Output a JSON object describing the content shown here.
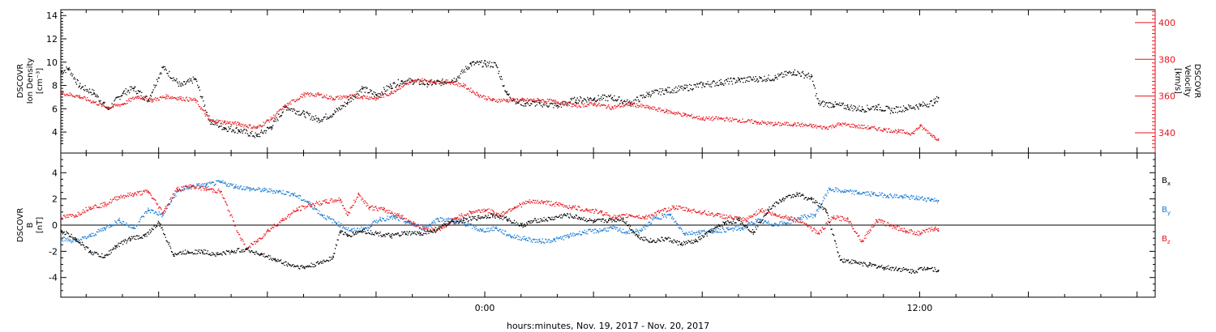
{
  "chart_data": [
    {
      "type": "scatter",
      "panel": "top",
      "xlabel": "hours:minutes, Nov. 19, 2017 - Nov. 20, 2017",
      "x_unit": "hours relative to 0:00 Nov. 20, 2017",
      "xlim": [
        -11.7,
        18.5
      ],
      "x_tick_labels": [
        {
          "x": 0,
          "label": "0:00"
        },
        {
          "x": 12,
          "label": "12:00"
        }
      ],
      "ylabel_left": [
        "DSCOVR",
        "Ion Density",
        "[cm⁻³]"
      ],
      "ylim_left": [
        2.2,
        14.5
      ],
      "yticks_left": [
        4,
        6,
        8,
        10,
        12,
        14
      ],
      "ylabel_right": [
        "DSCOVR",
        "Velocity",
        "[km/s]"
      ],
      "ylim_right": [
        329,
        407
      ],
      "yticks_right": [
        340,
        360,
        380,
        400
      ],
      "series": [
        {
          "axis": "left",
          "color": "#000000",
          "x": [
            -11.7,
            -11.5,
            -11.2,
            -10.8,
            -10.4,
            -10.0,
            -9.7,
            -9.3,
            -8.9,
            -8.4,
            -8.0,
            -7.6,
            -7.2,
            -6.8,
            -6.3,
            -5.9,
            -5.5,
            -5.0,
            -4.6,
            -4.2,
            -3.8,
            -3.4,
            -3.0,
            -2.6,
            -2.3,
            -2.0,
            -1.6,
            -1.2,
            -0.8,
            -0.4,
            0.0,
            0.3,
            0.6,
            0.9,
            1.1,
            1.5,
            2.0,
            2.5,
            3.0,
            3.5,
            4.0,
            4.5,
            5.0,
            5.5,
            6.0,
            6.5,
            7.0,
            7.5,
            8.0,
            8.5,
            9.0,
            9.2,
            9.6,
            10.0,
            10.4,
            10.8,
            11.2,
            11.6,
            12.0,
            12.4,
            12.5
          ],
          "y": [
            9.2,
            9.5,
            8.0,
            7.4,
            6.0,
            7.4,
            7.8,
            6.8,
            9.6,
            8.0,
            8.6,
            5.0,
            4.4,
            4.2,
            3.7,
            4.5,
            6.2,
            5.6,
            5.1,
            5.6,
            6.6,
            7.8,
            7.2,
            8.0,
            8.4,
            8.4,
            8.2,
            8.3,
            8.6,
            9.9,
            9.9,
            9.8,
            7.3,
            6.6,
            6.5,
            6.5,
            6.3,
            6.8,
            6.9,
            7.0,
            6.5,
            7.3,
            7.6,
            7.8,
            8.1,
            8.3,
            8.5,
            8.6,
            8.7,
            9.2,
            8.8,
            6.5,
            6.4,
            6.2,
            6.0,
            6.2,
            5.9,
            6.1,
            6.3,
            6.6,
            7.0
          ]
        },
        {
          "axis": "right",
          "color": "#e8141c",
          "x": [
            -11.7,
            -11.2,
            -10.8,
            -10.4,
            -10.0,
            -9.6,
            -9.2,
            -8.8,
            -8.4,
            -8.0,
            -7.6,
            -7.2,
            -6.8,
            -6.3,
            -5.9,
            -5.5,
            -5.0,
            -4.6,
            -4.2,
            -3.8,
            -3.4,
            -3.0,
            -2.6,
            -2.2,
            -1.8,
            -1.4,
            -1.0,
            -0.6,
            -0.2,
            0.2,
            0.6,
            1.0,
            1.5,
            2.0,
            2.5,
            3.0,
            3.5,
            4.0,
            4.5,
            5.0,
            5.5,
            6.0,
            6.5,
            7.0,
            7.5,
            8.0,
            8.5,
            9.0,
            9.4,
            9.8,
            10.2,
            10.6,
            11.0,
            11.4,
            11.8,
            12.0,
            12.4,
            12.5
          ],
          "y": [
            362,
            360,
            357,
            354,
            356,
            360,
            358,
            360,
            359,
            358,
            347,
            346,
            345,
            343,
            348,
            355,
            361,
            361,
            359,
            360,
            360,
            359,
            362,
            367,
            369,
            368,
            368,
            366,
            361,
            358,
            358,
            358,
            358,
            357,
            355,
            356,
            354,
            356,
            354,
            352,
            350,
            348,
            348,
            347,
            346,
            345,
            345,
            344,
            343,
            345,
            344,
            343,
            342,
            341,
            340,
            344,
            338,
            337
          ]
        }
      ]
    },
    {
      "type": "scatter",
      "panel": "bottom",
      "xlabel": "hours:minutes, Nov. 19, 2017 - Nov. 20, 2017",
      "xlim": [
        -11.7,
        18.5
      ],
      "ylabel": [
        "DSCOVR",
        "B",
        "[nT]"
      ],
      "ylim": [
        -5.5,
        5.5
      ],
      "yticks": [
        -4,
        -2,
        0,
        2,
        4
      ],
      "zero_line": true,
      "series": [
        {
          "label": "Bx",
          "color": "#000000",
          "x": [
            -11.7,
            -11.3,
            -10.9,
            -10.5,
            -10.2,
            -9.8,
            -9.4,
            -9.0,
            -8.6,
            -8.2,
            -7.8,
            -7.4,
            -7.0,
            -6.6,
            -6.2,
            -5.8,
            -5.4,
            -5.0,
            -4.6,
            -4.2,
            -4.0,
            -3.8,
            -3.4,
            -3.0,
            -2.6,
            -2.2,
            -1.8,
            -1.4,
            -1.0,
            -0.6,
            -0.2,
            0.2,
            0.6,
            1.0,
            1.4,
            1.8,
            2.2,
            2.6,
            3.0,
            3.4,
            3.8,
            4.2,
            4.6,
            5.0,
            5.4,
            5.8,
            6.2,
            6.6,
            7.0,
            7.4,
            7.8,
            8.2,
            8.6,
            9.0,
            9.4,
            9.8,
            10.2,
            10.6,
            11.0,
            11.4,
            11.8,
            12.2,
            12.5
          ],
          "y": [
            -0.4,
            -1.0,
            -2.0,
            -2.4,
            -1.6,
            -1.0,
            -0.8,
            0.2,
            -2.2,
            -2.0,
            -2.0,
            -2.2,
            -2.0,
            -1.8,
            -2.2,
            -2.6,
            -3.0,
            -3.2,
            -2.9,
            -2.4,
            -0.4,
            -0.8,
            -0.4,
            -0.6,
            -0.8,
            -0.6,
            -0.6,
            -0.4,
            0.2,
            0.4,
            0.6,
            0.8,
            0.5,
            0.0,
            0.4,
            0.5,
            0.8,
            0.6,
            0.3,
            0.4,
            0.5,
            -0.8,
            -1.2,
            -1.0,
            -1.4,
            -1.2,
            -0.5,
            0.2,
            0.4,
            -0.5,
            1.2,
            2.0,
            2.4,
            2.0,
            1.2,
            -2.6,
            -2.8,
            -3.0,
            -3.2,
            -3.3,
            -3.5,
            -3.2,
            -3.4
          ]
        },
        {
          "label": "By",
          "color": "#1478d4",
          "x": [
            -11.7,
            -11.3,
            -10.9,
            -10.5,
            -10.1,
            -9.7,
            -9.3,
            -8.9,
            -8.5,
            -8.1,
            -7.7,
            -7.3,
            -6.9,
            -6.5,
            -6.1,
            -5.7,
            -5.3,
            -4.9,
            -4.5,
            -4.1,
            -3.7,
            -3.3,
            -2.9,
            -2.5,
            -2.1,
            -1.7,
            -1.3,
            -0.9,
            -0.5,
            -0.1,
            0.3,
            0.7,
            1.1,
            1.5,
            1.9,
            2.3,
            2.7,
            3.1,
            3.5,
            3.9,
            4.3,
            4.7,
            5.1,
            5.5,
            5.9,
            6.3,
            6.7,
            7.1,
            7.5,
            7.9,
            8.3,
            8.7,
            9.1,
            9.5,
            9.9,
            10.3,
            10.7,
            11.1,
            11.5,
            11.9,
            12.3,
            12.5
          ],
          "y": [
            -1.0,
            -1.2,
            -0.8,
            -0.2,
            0.4,
            -0.2,
            1.2,
            0.8,
            2.6,
            3.0,
            3.1,
            3.3,
            3.0,
            2.8,
            2.7,
            2.6,
            2.4,
            1.8,
            0.8,
            0.2,
            -0.4,
            -0.2,
            0.5,
            0.6,
            0.2,
            -0.2,
            0.5,
            0.4,
            0.1,
            -0.4,
            -0.2,
            -0.8,
            -1.0,
            -1.2,
            -1.1,
            -0.8,
            -0.5,
            -0.4,
            -0.2,
            -0.5,
            -0.4,
            0.6,
            0.8,
            -0.6,
            -0.5,
            -0.4,
            -0.3,
            -0.2,
            0.4,
            0.1,
            0.2,
            0.6,
            0.8,
            2.8,
            2.6,
            2.5,
            2.4,
            2.3,
            2.2,
            2.1,
            2.0,
            1.9
          ]
        },
        {
          "label": "Bz",
          "color": "#e8141c",
          "x": [
            -11.7,
            -11.3,
            -10.9,
            -10.5,
            -10.1,
            -9.7,
            -9.3,
            -8.9,
            -8.5,
            -8.1,
            -7.7,
            -7.3,
            -6.9,
            -6.6,
            -6.3,
            -6.0,
            -5.6,
            -5.2,
            -4.8,
            -4.4,
            -4.0,
            -3.8,
            -3.5,
            -3.2,
            -2.8,
            -2.4,
            -2.0,
            -1.6,
            -1.2,
            -0.8,
            -0.4,
            0.0,
            0.4,
            0.8,
            1.2,
            1.6,
            2.0,
            2.4,
            2.8,
            3.2,
            3.6,
            4.0,
            4.4,
            4.8,
            5.2,
            5.6,
            6.0,
            6.4,
            6.8,
            7.2,
            7.6,
            8.0,
            8.4,
            8.8,
            9.2,
            9.6,
            10.0,
            10.4,
            10.8,
            11.2,
            11.6,
            12.0,
            12.4,
            12.5
          ],
          "y": [
            0.6,
            0.8,
            1.4,
            1.6,
            2.2,
            2.4,
            2.6,
            1.0,
            2.8,
            3.0,
            2.8,
            2.6,
            0.0,
            -1.8,
            -1.2,
            -0.4,
            0.4,
            1.2,
            1.6,
            1.8,
            2.0,
            0.8,
            2.4,
            1.4,
            1.2,
            0.8,
            0.2,
            -0.3,
            -0.2,
            0.6,
            1.0,
            1.2,
            0.8,
            1.4,
            1.8,
            1.8,
            1.6,
            1.4,
            1.2,
            1.0,
            0.6,
            0.8,
            0.6,
            1.0,
            1.4,
            1.2,
            1.0,
            0.8,
            0.6,
            0.4,
            1.2,
            0.8,
            0.6,
            0.2,
            -0.6,
            0.6,
            0.5,
            -1.2,
            0.4,
            0.0,
            -0.4,
            -0.6,
            -0.2,
            -0.4
          ]
        }
      ]
    }
  ],
  "legend": {
    "bx": {
      "base": "B",
      "sub": "x",
      "color": "#000000"
    },
    "by": {
      "base": "B",
      "sub": "y",
      "color": "#1478d4"
    },
    "bz": {
      "base": "B",
      "sub": "z",
      "color": "#e8141c"
    }
  }
}
